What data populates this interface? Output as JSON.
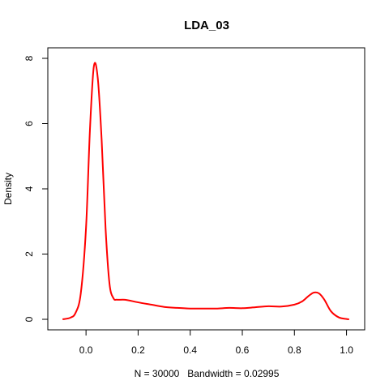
{
  "chart_data": {
    "type": "line",
    "title": "LDA_03",
    "xlabel": "N = 30000   Bandwidth = 0.02995",
    "ylabel": "Density",
    "xlim": [
      -0.1,
      1.02
    ],
    "ylim": [
      0,
      8
    ],
    "x_ticks": [
      "0.0",
      "0.2",
      "0.4",
      "0.6",
      "0.8",
      "1.0"
    ],
    "y_ticks": [
      "0",
      "2",
      "4",
      "6",
      "8"
    ],
    "grid": false,
    "legend": "none",
    "series": [
      {
        "color": "#ff0000",
        "x": [
          -0.09,
          -0.06,
          -0.04,
          -0.02,
          0.0,
          0.015,
          0.03,
          0.045,
          0.06,
          0.075,
          0.09,
          0.105,
          0.12,
          0.15,
          0.2,
          0.25,
          0.3,
          0.35,
          0.4,
          0.45,
          0.5,
          0.55,
          0.6,
          0.65,
          0.7,
          0.75,
          0.8,
          0.83,
          0.855,
          0.875,
          0.895,
          0.915,
          0.94,
          0.97,
          1.0,
          1.01
        ],
        "y": [
          0.0,
          0.05,
          0.2,
          0.8,
          2.8,
          5.8,
          7.75,
          7.4,
          5.5,
          2.8,
          1.1,
          0.65,
          0.6,
          0.6,
          0.52,
          0.45,
          0.38,
          0.35,
          0.33,
          0.33,
          0.33,
          0.35,
          0.34,
          0.37,
          0.4,
          0.39,
          0.45,
          0.55,
          0.72,
          0.82,
          0.79,
          0.6,
          0.25,
          0.06,
          0.01,
          0.0
        ]
      }
    ]
  }
}
